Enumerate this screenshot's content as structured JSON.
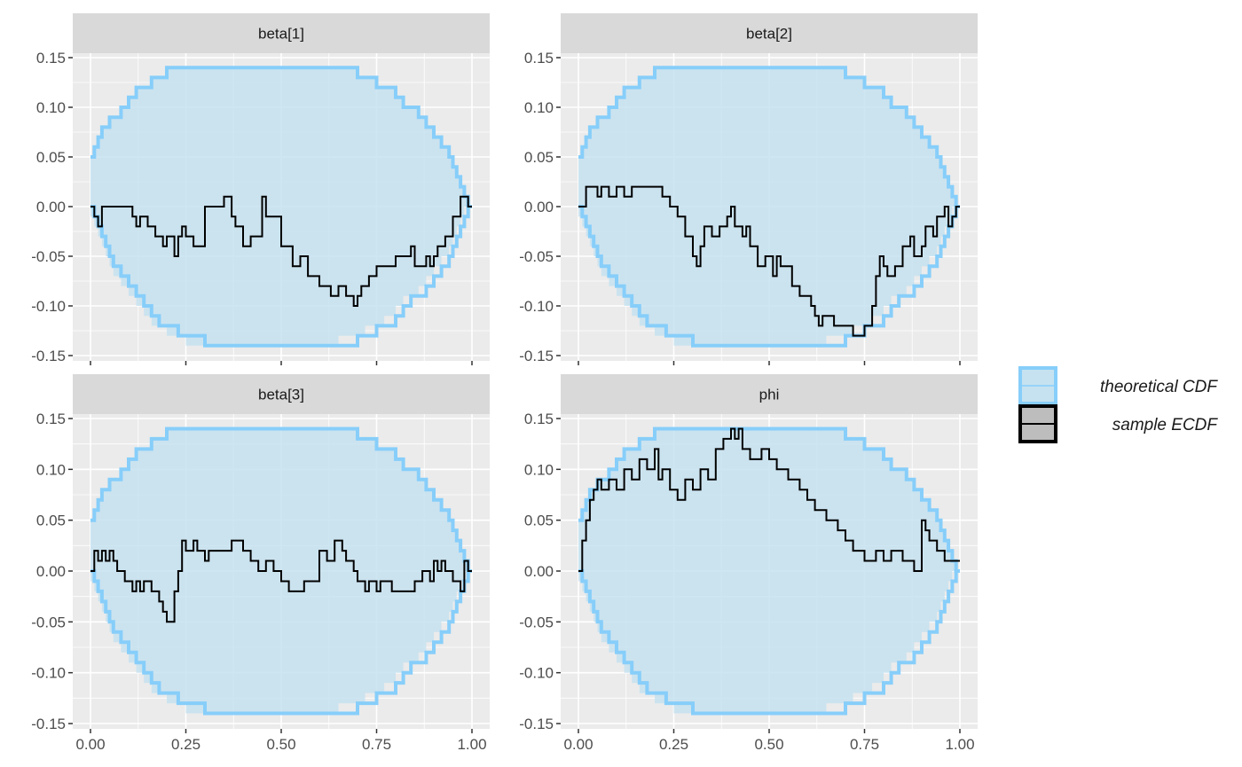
{
  "chart_data": {
    "type": "line",
    "chart_kind": "ECDF difference plot with simultaneous confidence bands (faceted)",
    "grid": true,
    "legend_position": "right",
    "colors": {
      "band_fill": "#c6e2f0",
      "band_outline": "#87cefa",
      "ecdf_line": "#000000",
      "panel_background": "#ebebeb",
      "strip_background": "#d9d9d9"
    },
    "xlim": [
      0,
      1
    ],
    "ylim": [
      -0.15,
      0.15
    ],
    "x_ticks": [
      0,
      0.25,
      0.5,
      0.75,
      1
    ],
    "x_tick_labels": [
      "0.00",
      "0.25",
      "0.50",
      "0.75",
      "1.00"
    ],
    "y_ticks": [
      0.15,
      0.1,
      0.05,
      0.0,
      -0.05,
      -0.1,
      -0.15
    ],
    "y_tick_labels": [
      "0.15",
      "0.10",
      "0.05",
      "0.00",
      "-0.05",
      "-0.10",
      "-0.15"
    ],
    "legend": {
      "items": [
        {
          "label": "theoretical CDF",
          "key": "band"
        },
        {
          "label": "sample ECDF",
          "key": "line"
        }
      ]
    },
    "band": {
      "x": [
        0,
        0.01,
        0.02,
        0.03,
        0.04,
        0.05,
        0.06,
        0.08,
        0.1,
        0.12,
        0.14,
        0.16,
        0.18,
        0.2,
        0.23,
        0.25,
        0.3,
        0.35,
        0.38,
        0.4,
        0.45,
        0.5,
        0.55,
        0.6,
        0.62,
        0.65,
        0.7,
        0.72,
        0.75,
        0.77,
        0.8,
        0.82,
        0.84,
        0.86,
        0.88,
        0.9,
        0.92,
        0.94,
        0.95,
        0.96,
        0.97,
        0.98,
        0.99,
        1.0
      ],
      "upper": [
        0.05,
        0.06,
        0.07,
        0.08,
        0.08,
        0.09,
        0.09,
        0.1,
        0.11,
        0.12,
        0.12,
        0.13,
        0.13,
        0.14,
        0.14,
        0.14,
        0.14,
        0.14,
        0.14,
        0.14,
        0.14,
        0.14,
        0.14,
        0.14,
        0.14,
        0.14,
        0.13,
        0.13,
        0.12,
        0.12,
        0.11,
        0.1,
        0.1,
        0.09,
        0.08,
        0.07,
        0.06,
        0.05,
        0.04,
        0.03,
        0.02,
        0.01,
        0.0,
        0.0
      ],
      "lower": [
        0.0,
        -0.01,
        -0.02,
        -0.03,
        -0.04,
        -0.05,
        -0.06,
        -0.07,
        -0.08,
        -0.09,
        -0.1,
        -0.11,
        -0.12,
        -0.12,
        -0.13,
        -0.13,
        -0.14,
        -0.14,
        -0.14,
        -0.14,
        -0.14,
        -0.14,
        -0.14,
        -0.14,
        -0.14,
        -0.14,
        -0.13,
        -0.13,
        -0.12,
        -0.12,
        -0.11,
        -0.1,
        -0.09,
        -0.09,
        -0.08,
        -0.07,
        -0.06,
        -0.05,
        -0.04,
        -0.03,
        -0.02,
        -0.01,
        0.0,
        0.0
      ]
    },
    "panels": [
      {
        "name": "beta[1]",
        "ecdf": {
          "x": [
            0,
            0.01,
            0.02,
            0.03,
            0.1,
            0.11,
            0.12,
            0.13,
            0.15,
            0.17,
            0.19,
            0.2,
            0.22,
            0.23,
            0.24,
            0.25,
            0.27,
            0.3,
            0.35,
            0.37,
            0.38,
            0.4,
            0.42,
            0.45,
            0.46,
            0.48,
            0.5,
            0.53,
            0.55,
            0.57,
            0.6,
            0.63,
            0.65,
            0.67,
            0.69,
            0.7,
            0.71,
            0.73,
            0.75,
            0.8,
            0.84,
            0.85,
            0.88,
            0.89,
            0.9,
            0.91,
            0.93,
            0.95,
            0.97,
            0.98,
            0.99,
            1.0
          ],
          "y": [
            0,
            -0.01,
            -0.02,
            0,
            0,
            -0.01,
            -0.02,
            -0.01,
            -0.02,
            -0.03,
            -0.04,
            -0.03,
            -0.05,
            -0.03,
            -0.02,
            -0.03,
            -0.04,
            0,
            0.01,
            -0.01,
            -0.02,
            -0.04,
            -0.03,
            0.01,
            -0.01,
            -0.01,
            -0.04,
            -0.06,
            -0.05,
            -0.07,
            -0.08,
            -0.09,
            -0.08,
            -0.09,
            -0.1,
            -0.09,
            -0.08,
            -0.07,
            -0.06,
            -0.05,
            -0.04,
            -0.06,
            -0.05,
            -0.06,
            -0.05,
            -0.04,
            -0.03,
            -0.01,
            0.01,
            0.01,
            0,
            0
          ]
        }
      },
      {
        "name": "beta[2]",
        "ecdf": {
          "x": [
            0,
            0.01,
            0.02,
            0.05,
            0.06,
            0.08,
            0.1,
            0.12,
            0.14,
            0.16,
            0.22,
            0.24,
            0.26,
            0.28,
            0.3,
            0.31,
            0.32,
            0.33,
            0.35,
            0.37,
            0.39,
            0.4,
            0.41,
            0.43,
            0.44,
            0.45,
            0.47,
            0.49,
            0.51,
            0.52,
            0.53,
            0.54,
            0.56,
            0.58,
            0.61,
            0.62,
            0.63,
            0.64,
            0.65,
            0.67,
            0.7,
            0.72,
            0.75,
            0.77,
            0.78,
            0.79,
            0.8,
            0.81,
            0.83,
            0.85,
            0.87,
            0.88,
            0.9,
            0.91,
            0.93,
            0.94,
            0.96,
            0.97,
            0.98,
            0.99,
            1.0
          ],
          "y": [
            0,
            0,
            0.02,
            0.01,
            0.02,
            0.01,
            0.02,
            0.01,
            0.02,
            0.02,
            0.01,
            0,
            -0.01,
            -0.03,
            -0.05,
            -0.06,
            -0.04,
            -0.02,
            -0.03,
            -0.02,
            -0.01,
            0,
            -0.02,
            -0.03,
            -0.02,
            -0.04,
            -0.06,
            -0.05,
            -0.07,
            -0.05,
            -0.06,
            -0.06,
            -0.08,
            -0.09,
            -0.1,
            -0.11,
            -0.12,
            -0.11,
            -0.11,
            -0.12,
            -0.12,
            -0.13,
            -0.12,
            -0.1,
            -0.07,
            -0.05,
            -0.06,
            -0.07,
            -0.06,
            -0.04,
            -0.03,
            -0.05,
            -0.04,
            -0.02,
            -0.03,
            -0.01,
            0,
            -0.02,
            -0.01,
            0,
            0
          ]
        }
      },
      {
        "name": "beta[3]",
        "ecdf": {
          "x": [
            0,
            0.01,
            0.02,
            0.03,
            0.04,
            0.05,
            0.06,
            0.07,
            0.09,
            0.11,
            0.12,
            0.13,
            0.14,
            0.15,
            0.16,
            0.18,
            0.19,
            0.2,
            0.22,
            0.23,
            0.24,
            0.25,
            0.27,
            0.28,
            0.3,
            0.31,
            0.33,
            0.37,
            0.4,
            0.42,
            0.44,
            0.46,
            0.48,
            0.5,
            0.52,
            0.53,
            0.56,
            0.6,
            0.62,
            0.64,
            0.66,
            0.67,
            0.69,
            0.7,
            0.72,
            0.73,
            0.75,
            0.76,
            0.79,
            0.83,
            0.85,
            0.87,
            0.89,
            0.9,
            0.91,
            0.92,
            0.93,
            0.95,
            0.97,
            0.98,
            0.99,
            1.0
          ],
          "y": [
            0,
            0.02,
            0.01,
            0.02,
            0.01,
            0.02,
            0.01,
            0,
            -0.01,
            -0.02,
            -0.01,
            -0.02,
            -0.01,
            -0.01,
            -0.02,
            -0.03,
            -0.04,
            -0.05,
            -0.02,
            0,
            0.03,
            0.02,
            0.03,
            0.02,
            0.01,
            0.02,
            0.02,
            0.03,
            0.02,
            0.01,
            0,
            0.01,
            0,
            -0.01,
            -0.02,
            -0.02,
            -0.01,
            0.02,
            0.01,
            0.03,
            0.02,
            0.01,
            0,
            -0.01,
            -0.02,
            -0.01,
            -0.02,
            -0.01,
            -0.02,
            -0.02,
            -0.01,
            0,
            -0.01,
            0.01,
            0,
            0.01,
            0,
            -0.01,
            -0.02,
            0.01,
            0,
            0
          ]
        }
      },
      {
        "name": "phi",
        "ecdf": {
          "x": [
            0,
            0.01,
            0.02,
            0.03,
            0.04,
            0.05,
            0.06,
            0.08,
            0.1,
            0.12,
            0.14,
            0.16,
            0.18,
            0.2,
            0.21,
            0.22,
            0.24,
            0.26,
            0.28,
            0.3,
            0.32,
            0.34,
            0.36,
            0.38,
            0.4,
            0.41,
            0.42,
            0.43,
            0.45,
            0.48,
            0.5,
            0.52,
            0.55,
            0.58,
            0.6,
            0.62,
            0.65,
            0.68,
            0.7,
            0.72,
            0.75,
            0.78,
            0.8,
            0.82,
            0.85,
            0.88,
            0.9,
            0.91,
            0.92,
            0.94,
            0.96,
            0.98,
            1.0
          ],
          "y": [
            0,
            0.03,
            0.05,
            0.07,
            0.08,
            0.09,
            0.08,
            0.09,
            0.08,
            0.1,
            0.09,
            0.11,
            0.1,
            0.12,
            0.09,
            0.1,
            0.08,
            0.07,
            0.09,
            0.08,
            0.1,
            0.09,
            0.12,
            0.13,
            0.14,
            0.13,
            0.14,
            0.12,
            0.11,
            0.12,
            0.11,
            0.1,
            0.09,
            0.08,
            0.07,
            0.06,
            0.05,
            0.04,
            0.03,
            0.02,
            0.01,
            0.02,
            0.01,
            0.02,
            0.01,
            0.0,
            0.05,
            0.04,
            0.03,
            0.02,
            0.01,
            0.01,
            0.01
          ]
        }
      }
    ]
  }
}
